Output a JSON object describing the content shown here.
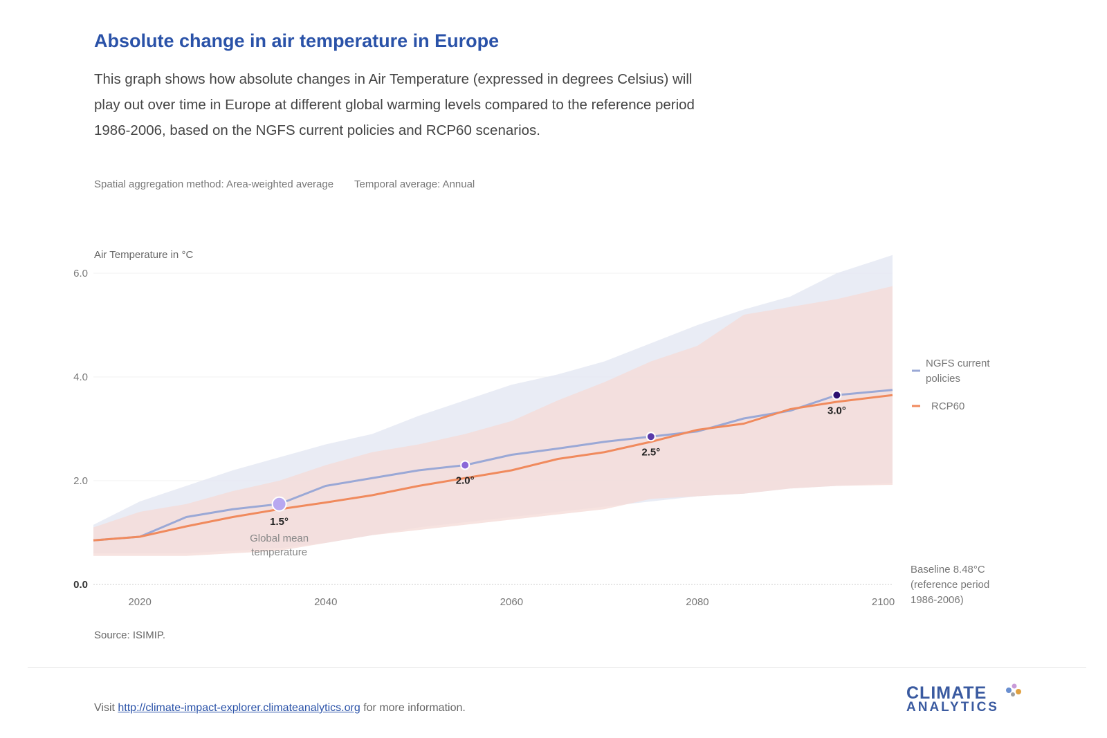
{
  "header": {
    "title": "Absolute change in air temperature in Europe",
    "description": "This graph shows how absolute changes in Air Temperature (expressed in degrees Celsius) will play out over time in Europe at different global warming levels compared to the reference period 1986-2006, based on the NGFS current policies and RCP60 scenarios.",
    "spatial": "Spatial aggregation method: Area-weighted average",
    "temporal": "Temporal average: Annual"
  },
  "chart_data": {
    "type": "line",
    "ylabel": "Air Temperature in °C",
    "xlim": [
      2015,
      2101
    ],
    "ylim": [
      0,
      6.2
    ],
    "x_ticks": [
      2020,
      2040,
      2060,
      2080,
      2100
    ],
    "y_ticks": [
      {
        "value": 0,
        "label": "0.0"
      },
      {
        "value": 2,
        "label": "2.0"
      },
      {
        "value": 4,
        "label": "4.0"
      },
      {
        "value": 6,
        "label": "6.0"
      }
    ],
    "grid": true,
    "legend_position": "right",
    "series": [
      {
        "name": "NGFS current policies",
        "color": "#9aa8d6",
        "band_color": "#e4e7f2",
        "x": [
          2015,
          2020,
          2025,
          2030,
          2035,
          2040,
          2045,
          2050,
          2055,
          2060,
          2065,
          2070,
          2075,
          2080,
          2085,
          2090,
          2095,
          2101
        ],
        "values": [
          0.85,
          0.92,
          1.3,
          1.45,
          1.55,
          1.9,
          2.05,
          2.2,
          2.3,
          2.5,
          2.62,
          2.75,
          2.85,
          2.95,
          3.2,
          3.35,
          3.65,
          3.75
        ],
        "upper": [
          1.15,
          1.6,
          1.9,
          2.2,
          2.45,
          2.7,
          2.9,
          3.25,
          3.55,
          3.85,
          4.05,
          4.3,
          4.65,
          5.0,
          5.3,
          5.55,
          6.0,
          6.35
        ],
        "lower": [
          0.6,
          0.6,
          0.6,
          0.65,
          0.7,
          0.8,
          0.95,
          1.1,
          1.2,
          1.3,
          1.4,
          1.5,
          1.6,
          1.7,
          1.75,
          1.85,
          1.9,
          1.95
        ]
      },
      {
        "name": "RCP60",
        "color": "#f08a5d",
        "band_color": "#f5dcd8",
        "x": [
          2015,
          2020,
          2025,
          2030,
          2035,
          2040,
          2045,
          2050,
          2055,
          2060,
          2065,
          2070,
          2075,
          2080,
          2085,
          2090,
          2095,
          2101
        ],
        "values": [
          0.85,
          0.92,
          1.12,
          1.3,
          1.45,
          1.58,
          1.72,
          1.9,
          2.05,
          2.2,
          2.42,
          2.55,
          2.75,
          2.98,
          3.1,
          3.38,
          3.52,
          3.65
        ],
        "upper": [
          1.1,
          1.4,
          1.55,
          1.8,
          2.0,
          2.3,
          2.55,
          2.7,
          2.9,
          3.15,
          3.55,
          3.9,
          4.3,
          4.6,
          5.2,
          5.35,
          5.5,
          5.75
        ],
        "lower": [
          0.55,
          0.55,
          0.55,
          0.6,
          0.65,
          0.8,
          0.95,
          1.05,
          1.15,
          1.25,
          1.35,
          1.45,
          1.65,
          1.7,
          1.75,
          1.85,
          1.9,
          1.92
        ]
      }
    ],
    "warming_markers": [
      {
        "x": 2035,
        "y": 1.55,
        "label": "1.5°",
        "color": "#b8a8f0"
      },
      {
        "x": 2055,
        "y": 2.3,
        "label": "2.0°",
        "color": "#8a68d8"
      },
      {
        "x": 2075,
        "y": 2.85,
        "label": "2.5°",
        "color": "#5a3aa8"
      },
      {
        "x": 2095,
        "y": 3.65,
        "label": "3.0°",
        "color": "#2d1070"
      }
    ],
    "annotation_global_mean": [
      "Global mean",
      "temperature"
    ],
    "baseline_note": [
      "Baseline 8.48°C",
      "(reference period",
      "1986-2006)"
    ]
  },
  "footer": {
    "source": "Source: ISIMIP.",
    "visit_prefix": "Visit ",
    "link": "http://climate-impact-explorer.climateanalytics.org",
    "visit_suffix": " for more information.",
    "logo_line1": "CLIMATE",
    "logo_line2": "ANALYTICS"
  }
}
